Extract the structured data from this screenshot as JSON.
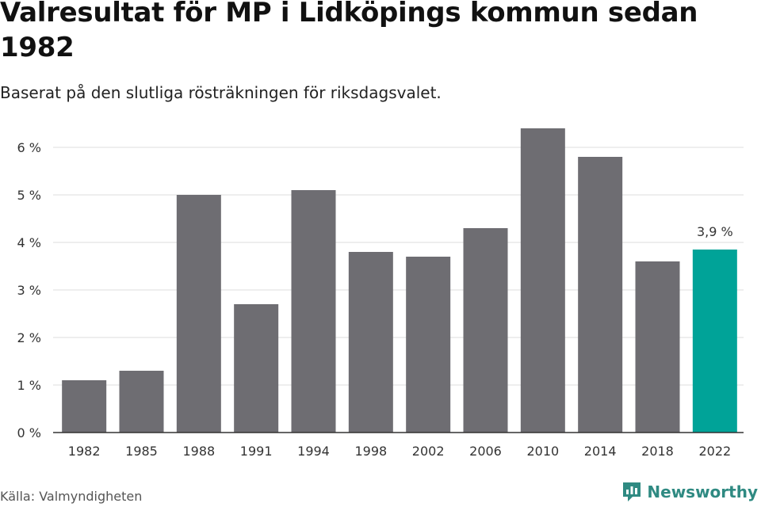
{
  "title": "Valresultat för MP i Lidköpings kommun sedan 1982",
  "subtitle": "Baserat på den slutliga rösträkningen för riksdagsvalet.",
  "source": "Källa: Valmyndigheten",
  "brand": "Newsworthy",
  "colors": {
    "bar": "#6e6d72",
    "highlight": "#00a398",
    "grid": "#dddddd",
    "axis": "#333333"
  },
  "chart_data": {
    "type": "bar",
    "title": "Valresultat för MP i Lidköpings kommun sedan 1982",
    "xlabel": "",
    "ylabel": "",
    "ylim": [
      0,
      6.5
    ],
    "yticks": [
      0,
      1,
      2,
      3,
      4,
      5,
      6
    ],
    "ytick_labels": [
      "0 %",
      "1 %",
      "2 %",
      "3 %",
      "4 %",
      "5 %",
      "6 %"
    ],
    "categories": [
      "1982",
      "1985",
      "1988",
      "1991",
      "1994",
      "1998",
      "2002",
      "2006",
      "2010",
      "2014",
      "2018",
      "2022"
    ],
    "values": [
      1.1,
      1.3,
      5.0,
      2.7,
      5.1,
      3.8,
      3.7,
      4.3,
      6.4,
      5.8,
      3.6,
      3.85
    ],
    "highlight_index": 11,
    "annotations": [
      {
        "category": "2022",
        "text": "3,9 %"
      }
    ]
  }
}
